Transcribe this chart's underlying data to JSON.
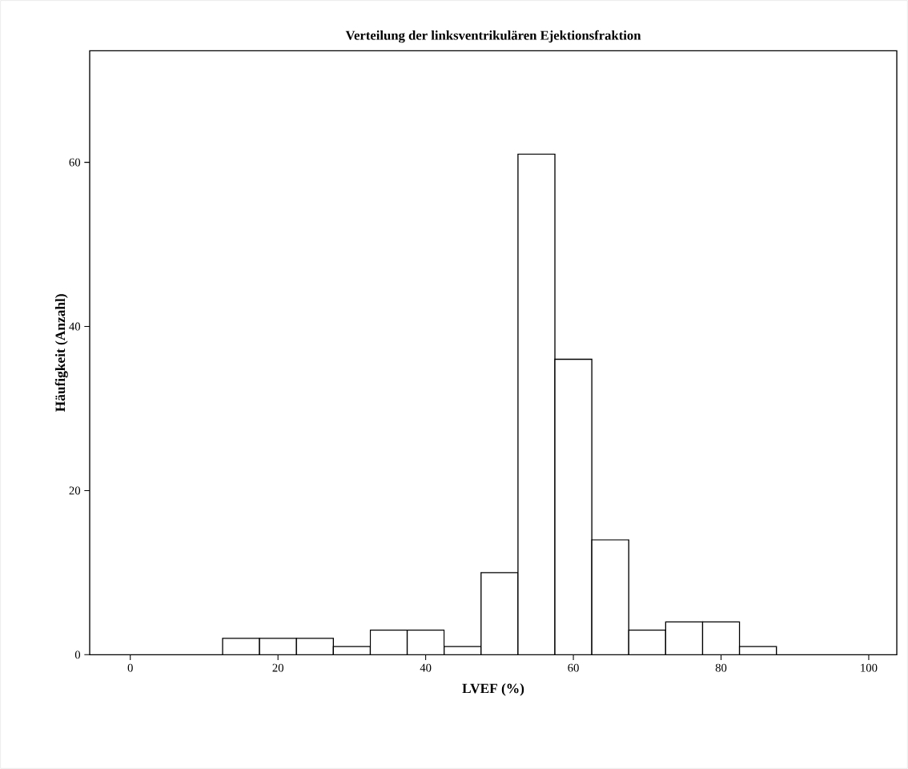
{
  "chart_data": {
    "type": "histogram",
    "title": "Verteilung der linksventrikulären Ejektionsfraktion",
    "xlabel": "LVEF (%)",
    "ylabel": "Häufigkeit (Anzahl)",
    "bins": [
      12.5,
      17.5,
      22.5,
      27.5,
      32.5,
      37.5,
      42.5,
      47.5,
      52.5,
      57.5,
      62.5,
      67.5,
      72.5,
      77.5,
      82.5,
      87.5
    ],
    "values": [
      2,
      2,
      2,
      1,
      3,
      3,
      1,
      10,
      61,
      36,
      14,
      3,
      4,
      4,
      1
    ],
    "color": "#ffffff",
    "xlim": [
      -5.5,
      103.8
    ],
    "ylim": [
      0,
      73.6
    ],
    "xticks": [
      0,
      20,
      40,
      60,
      80,
      100
    ],
    "yticks": [
      0,
      20,
      40,
      60
    ],
    "grid": false
  }
}
